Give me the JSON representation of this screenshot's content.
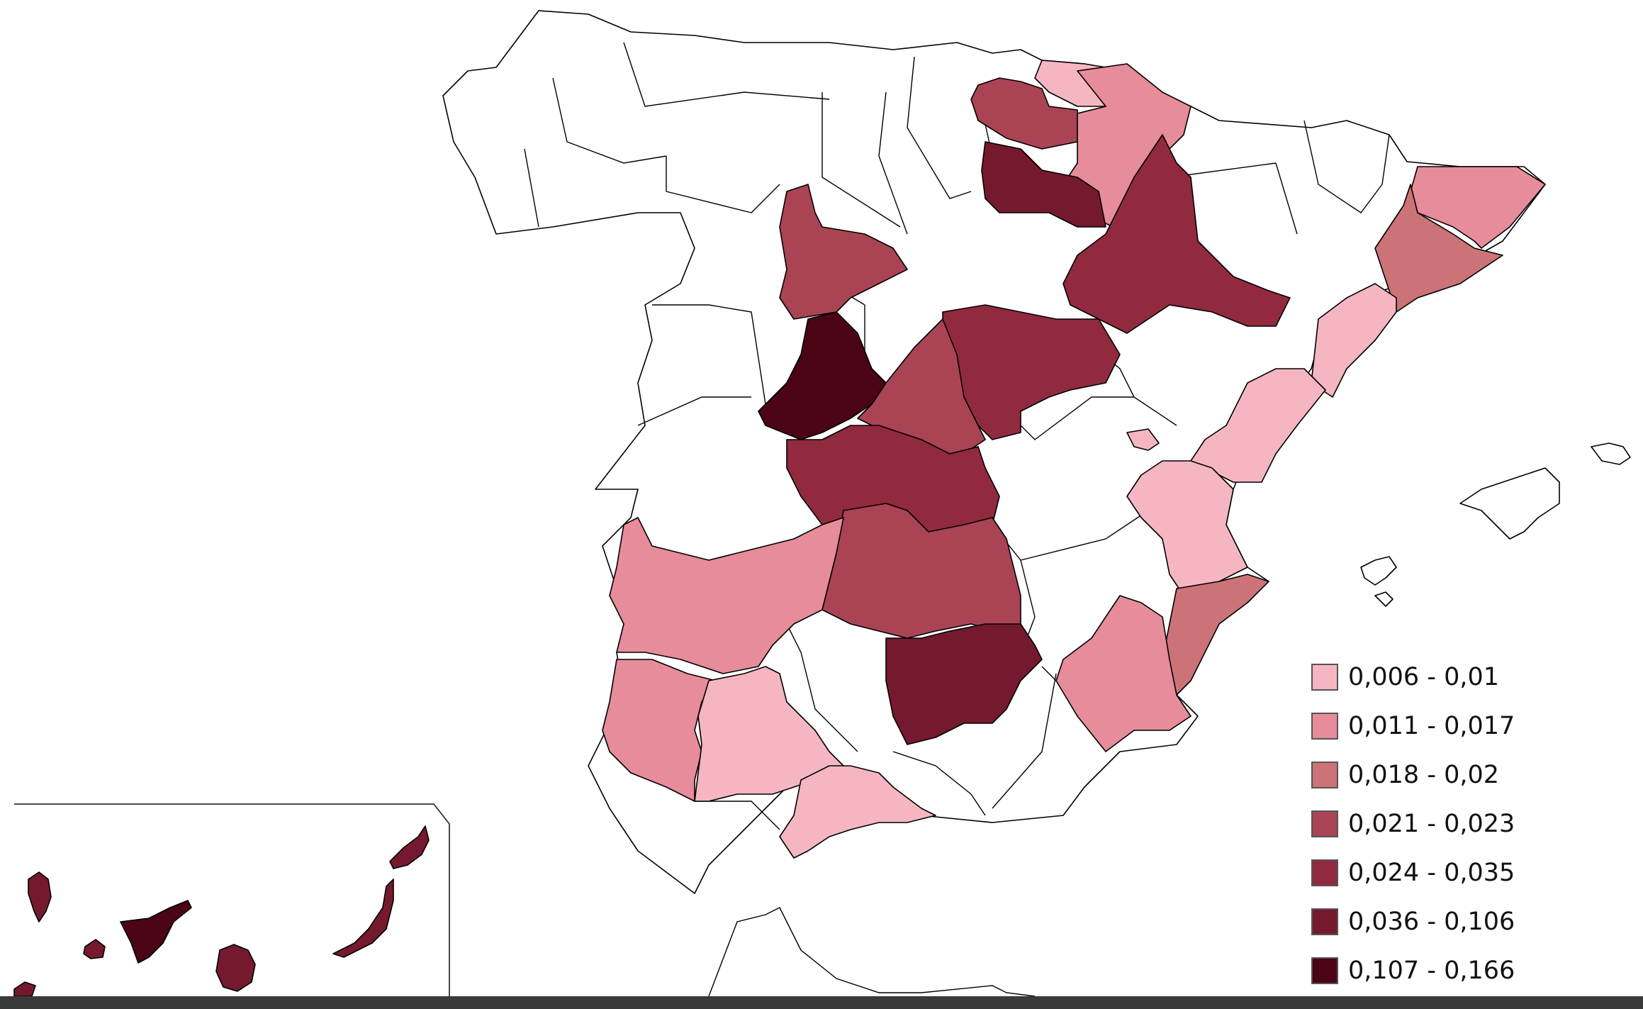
{
  "map": {
    "legend": [
      {
        "label": "0,006 - 0,01",
        "color": "#f5b6c2"
      },
      {
        "label": "0,011 - 0,017",
        "color": "#e78c9a"
      },
      {
        "label": "0,018 - 0,02",
        "color": "#cc7377"
      },
      {
        "label": "0,021 - 0,023",
        "color": "#aa4454"
      },
      {
        "label": "0,024 - 0,035",
        "color": "#912a3e"
      },
      {
        "label": "0,036 - 0,106",
        "color": "#751a2e"
      },
      {
        "label": "0,107 - 0,166",
        "color": "#4a0416"
      }
    ]
  }
}
